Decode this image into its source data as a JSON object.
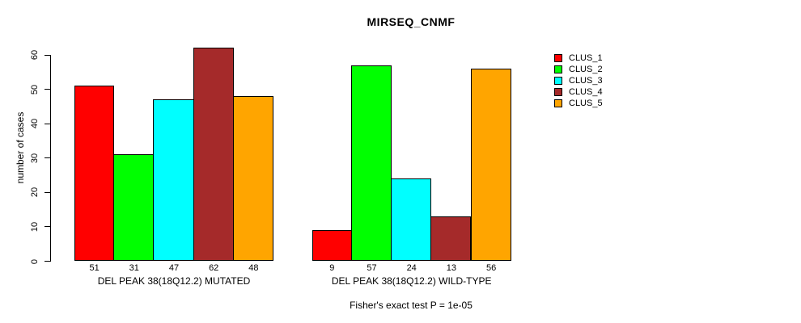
{
  "chart_data": {
    "type": "bar",
    "title": "MIRSEQ_CNMF",
    "ylabel": "number of cases",
    "xlabel": "",
    "categories": [
      "DEL PEAK 38(18Q12.2) MUTATED",
      "DEL PEAK 38(18Q12.2) WILD-TYPE"
    ],
    "series": [
      {
        "name": "CLUS_1",
        "color": "#FF0000",
        "values": [
          51,
          9
        ]
      },
      {
        "name": "CLUS_2",
        "color": "#00FF00",
        "values": [
          31,
          57
        ]
      },
      {
        "name": "CLUS_3",
        "color": "#00FFFF",
        "values": [
          47,
          24
        ]
      },
      {
        "name": "CLUS_4",
        "color": "#A52A2A",
        "values": [
          62,
          13
        ]
      },
      {
        "name": "CLUS_5",
        "color": "#FFA500",
        "values": [
          48,
          56
        ]
      }
    ],
    "bar_value_labels_shown": true,
    "y_ticks": [
      0,
      10,
      20,
      30,
      40,
      50,
      60
    ],
    "ylim": [
      0,
      62
    ],
    "grid": false,
    "legend_position": "right",
    "caption": "Fisher's exact test P = 1e-05"
  },
  "colors": {
    "background": "#FFFFFF",
    "axis": "#000000",
    "text": "#000000"
  }
}
